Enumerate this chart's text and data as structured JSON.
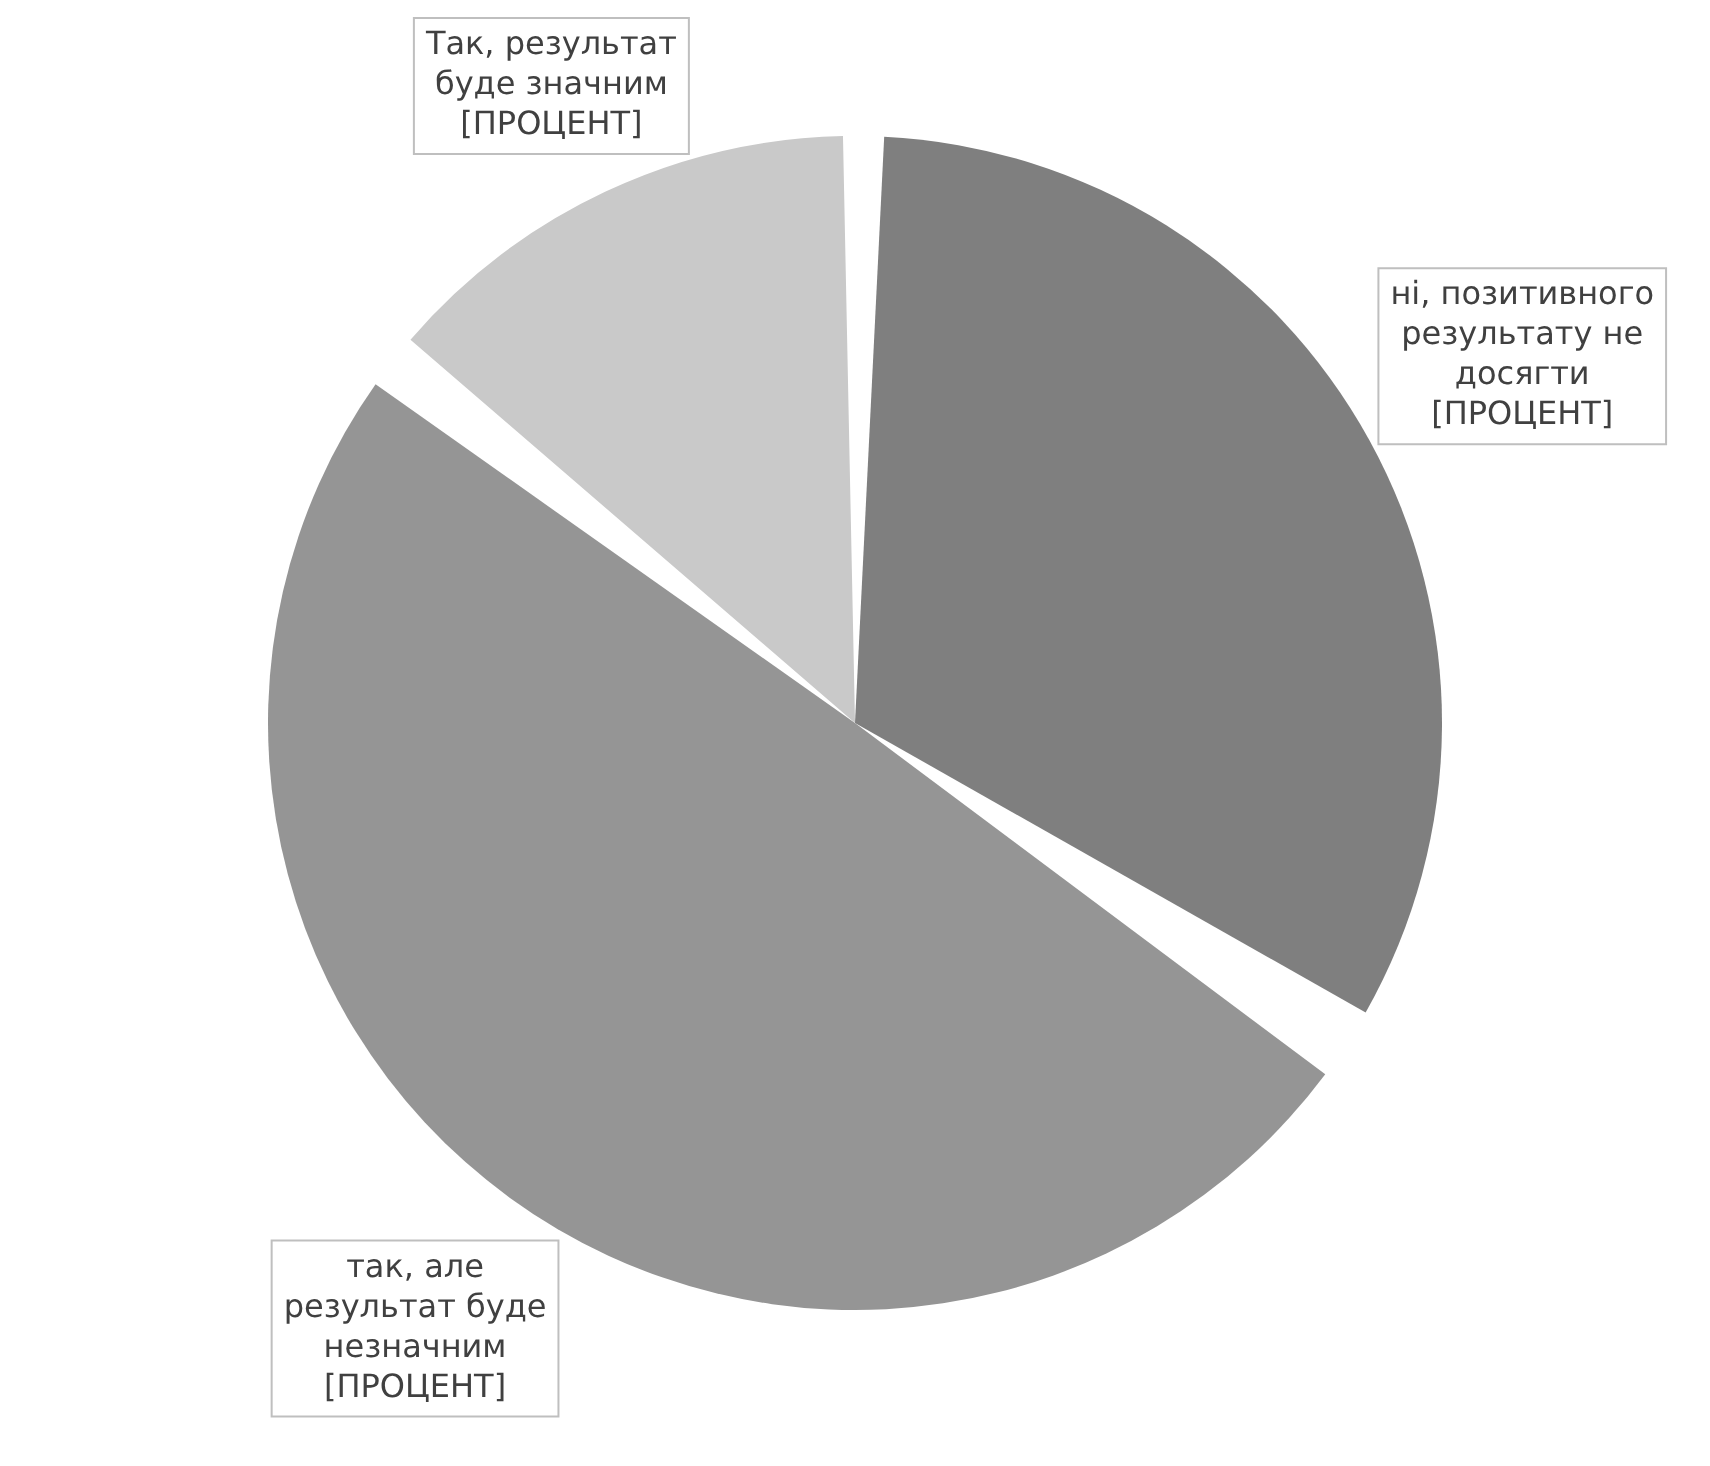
{
  "chart_data": {
    "type": "pie",
    "categories": [
      "ні, позитивного результату не досягти",
      "так, але результат буде незначним",
      "Так, результат буде значним"
    ],
    "values": [
      34,
      52,
      14
    ],
    "colors": [
      "#7f7f7f",
      "#959595",
      "#c9c9c9"
    ],
    "value_labels": [
      "[ПРОЦЕНТ]",
      "[ПРОЦЕНТ]",
      "[ПРОЦЕНТ]"
    ],
    "legend": false
  }
}
